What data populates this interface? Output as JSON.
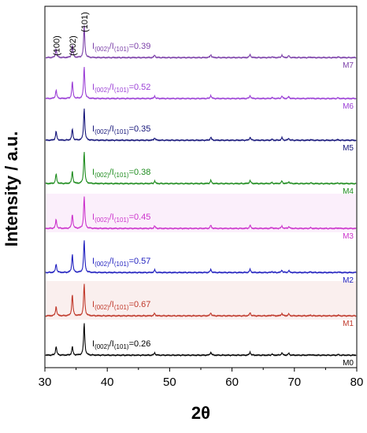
{
  "chart_data": {
    "type": "line",
    "xlabel": "2θ",
    "ylabel": "Intensity / a.u.",
    "xlim": [
      30,
      80
    ],
    "x_ticks": [
      "30",
      "40",
      "50",
      "60",
      "70",
      "80"
    ],
    "peaks": [
      {
        "label": "(100)",
        "x": 31.8
      },
      {
        "label": "(002)",
        "x": 34.4
      },
      {
        "label": "(101)",
        "x": 36.3
      }
    ],
    "series": [
      {
        "name": "M0",
        "color": "#000000",
        "ratio_label": "I",
        "ratio_sub1": "(002)",
        "ratio_mid": "/I",
        "ratio_sub2": "(101)",
        "ratio_value": "=0.26",
        "i100": 0.28,
        "i002": 0.26,
        "i101": 1.0,
        "highlight": false
      },
      {
        "name": "M1",
        "color": "#c0392b",
        "ratio_label": "I",
        "ratio_sub1": "(002)",
        "ratio_mid": "/I",
        "ratio_sub2": "(101)",
        "ratio_value": "=0.67",
        "i100": 0.3,
        "i002": 0.67,
        "i101": 1.0,
        "highlight": true
      },
      {
        "name": "M2",
        "color": "#1f1fbf",
        "ratio_label": "I",
        "ratio_sub1": "(002)",
        "ratio_mid": "/I",
        "ratio_sub2": "(101)",
        "ratio_value": "=0.57",
        "i100": 0.27,
        "i002": 0.57,
        "i101": 1.0,
        "highlight": false
      },
      {
        "name": "M3",
        "color": "#cc33cc",
        "ratio_label": "I",
        "ratio_sub1": "(002)",
        "ratio_mid": "/I",
        "ratio_sub2": "(101)",
        "ratio_value": "=0.45",
        "i100": 0.28,
        "i002": 0.45,
        "i101": 1.0,
        "highlight": true
      },
      {
        "name": "M4",
        "color": "#1e8c1e",
        "ratio_label": "I",
        "ratio_sub1": "(002)",
        "ratio_mid": "/I",
        "ratio_sub2": "(101)",
        "ratio_value": "=0.38",
        "i100": 0.3,
        "i002": 0.38,
        "i101": 1.0,
        "highlight": false
      },
      {
        "name": "M5",
        "color": "#15157a",
        "ratio_label": "I",
        "ratio_sub1": "(002)",
        "ratio_mid": "/I",
        "ratio_sub2": "(101)",
        "ratio_value": "=0.35",
        "i100": 0.28,
        "i002": 0.35,
        "i101": 1.0,
        "highlight": false
      },
      {
        "name": "M6",
        "color": "#9b3fd6",
        "ratio_label": "I",
        "ratio_sub1": "(002)",
        "ratio_mid": "/I",
        "ratio_sub2": "(101)",
        "ratio_value": "=0.52",
        "i100": 0.27,
        "i002": 0.52,
        "i101": 1.0,
        "highlight": false
      },
      {
        "name": "M7",
        "color": "#7b3fa8",
        "ratio_label": "I",
        "ratio_sub1": "(002)",
        "ratio_mid": "/I",
        "ratio_sub2": "(101)",
        "ratio_value": "=0.39",
        "i100": 0.28,
        "i002": 0.39,
        "i101": 1.0,
        "highlight": false
      }
    ],
    "minor_peaks": [
      {
        "x": 47.6,
        "rel": 0.08
      },
      {
        "x": 56.6,
        "rel": 0.1
      },
      {
        "x": 62.9,
        "rel": 0.1
      },
      {
        "x": 66.4,
        "rel": 0.03
      },
      {
        "x": 68.0,
        "rel": 0.08
      },
      {
        "x": 69.1,
        "rel": 0.06
      },
      {
        "x": 72.6,
        "rel": 0.02
      },
      {
        "x": 77.0,
        "rel": 0.02
      }
    ],
    "grid": false,
    "legend": "inline"
  }
}
